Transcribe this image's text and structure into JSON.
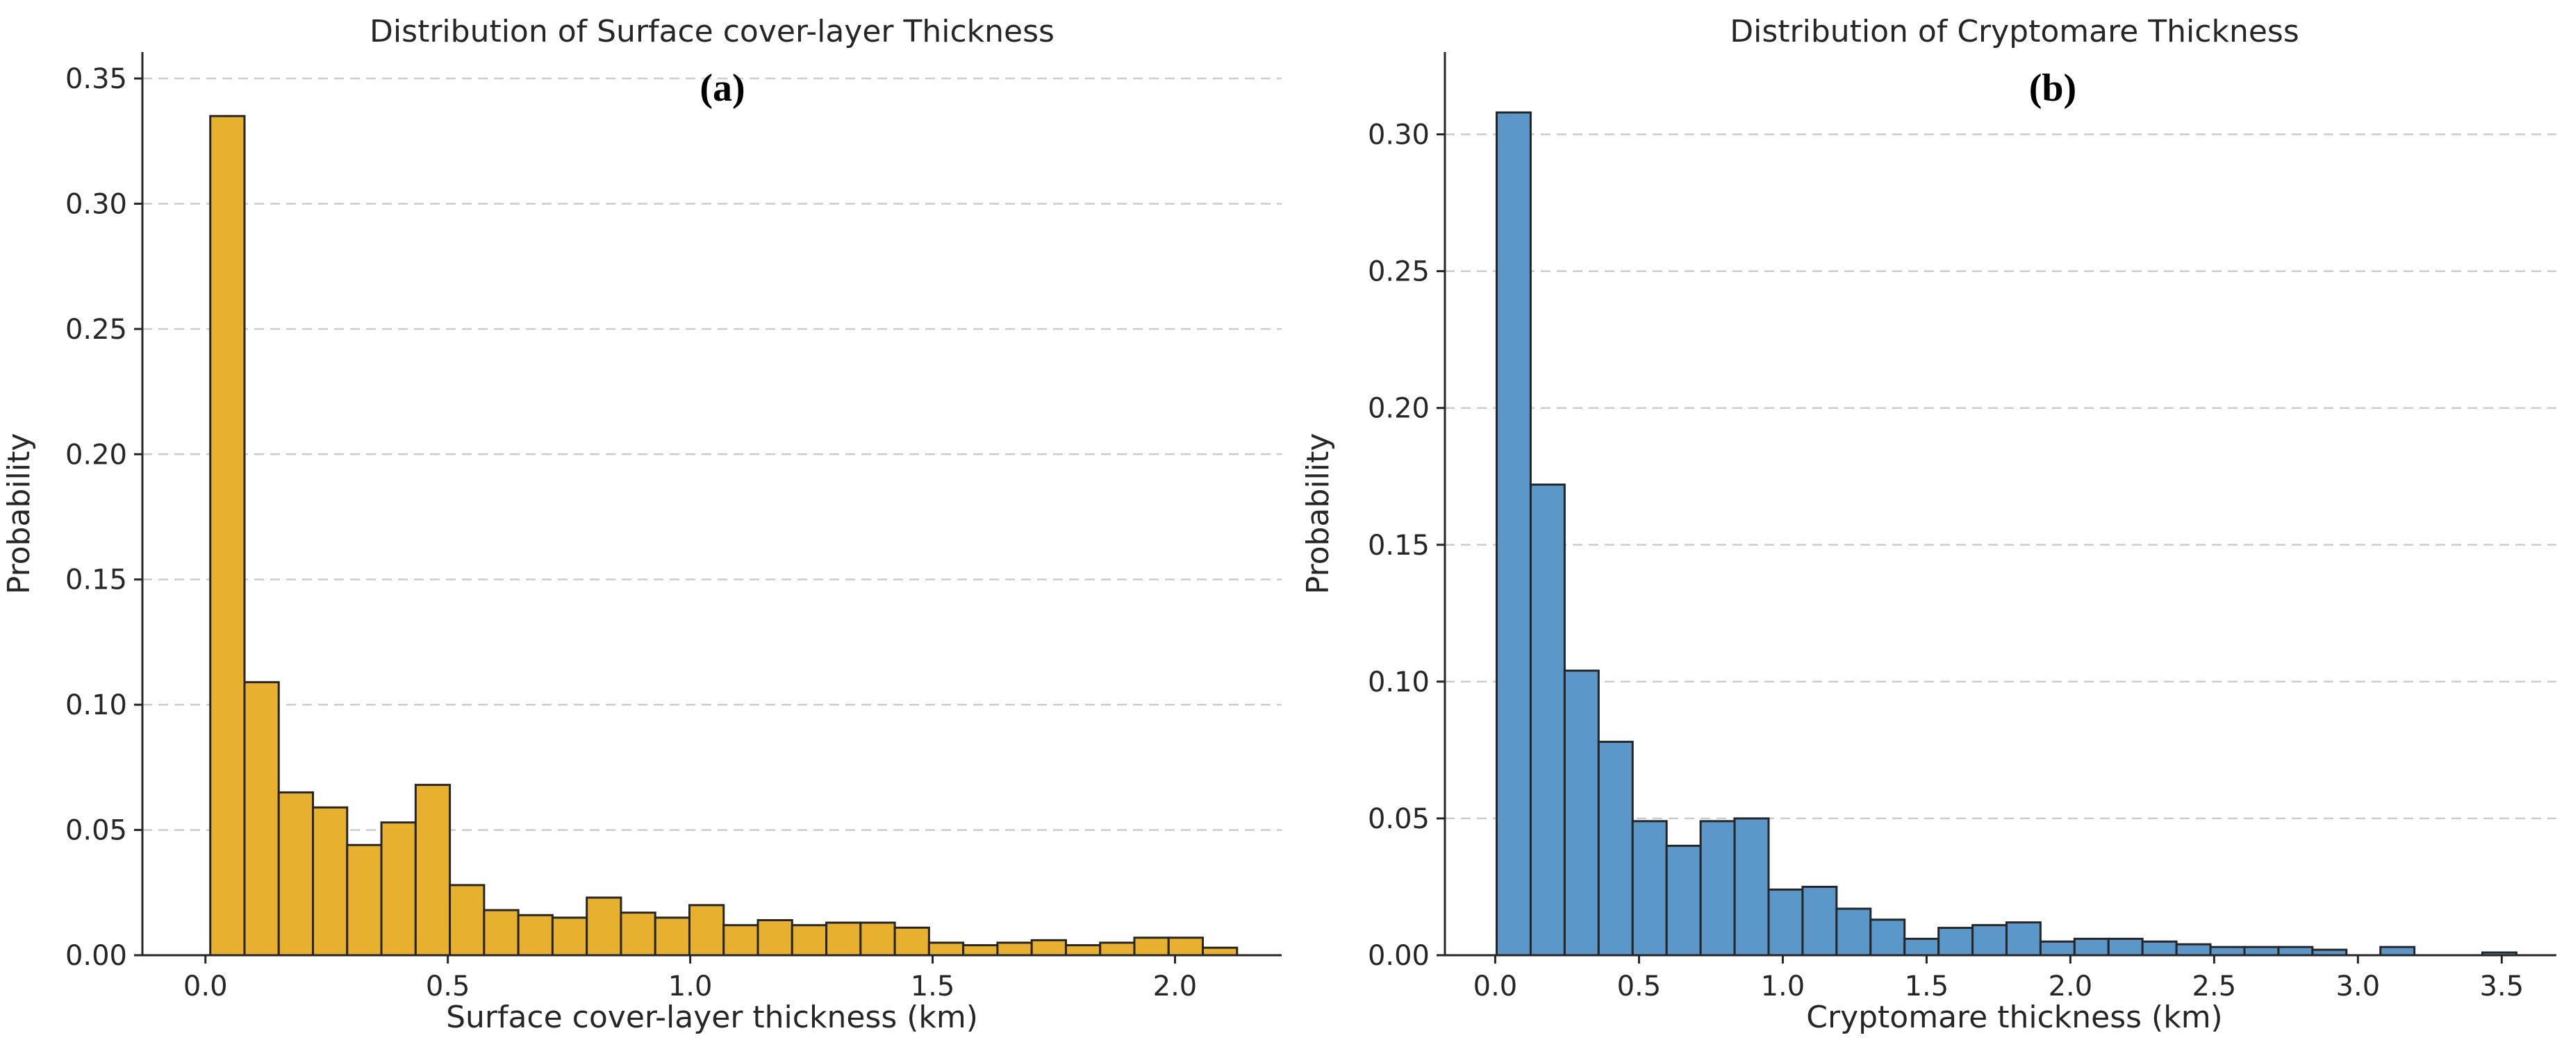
{
  "charts": [
    {
      "chart_data": {
        "type": "bar",
        "title": "Distribution of Surface cover-layer Thickness",
        "panel_label": "(a)",
        "xlabel": "Surface cover-layer thickness (km)",
        "ylabel": "Probability",
        "xlim": [
          -0.13,
          2.22
        ],
        "ylim": [
          0,
          0.355
        ],
        "xticks": [
          0.0,
          0.5,
          1.0,
          1.5,
          2.0
        ],
        "xtick_labels": [
          "0.0",
          "0.5",
          "1.0",
          "1.5",
          "2.0"
        ],
        "yticks": [
          0.0,
          0.05,
          0.1,
          0.15,
          0.2,
          0.25,
          0.3,
          0.35
        ],
        "ytick_labels": [
          "0.00",
          "0.05",
          "0.10",
          "0.15",
          "0.20",
          "0.25",
          "0.30",
          "0.35"
        ],
        "grid": "y",
        "bin_edges": [
          0.01,
          0.0806,
          0.1512,
          0.2218,
          0.2924,
          0.363,
          0.4336,
          0.5042,
          0.5748,
          0.6454,
          0.716,
          0.7866,
          0.8572,
          0.9278,
          0.9984,
          1.069,
          1.1396,
          1.2102,
          1.2808,
          1.3514,
          1.422,
          1.4926,
          1.5632,
          1.6338,
          1.7044,
          1.775,
          1.8456,
          1.9162,
          1.9868,
          2.0574,
          2.128
        ],
        "values": [
          0.335,
          0.109,
          0.065,
          0.059,
          0.044,
          0.053,
          0.068,
          0.028,
          0.018,
          0.016,
          0.015,
          0.023,
          0.017,
          0.015,
          0.02,
          0.012,
          0.014,
          0.012,
          0.013,
          0.013,
          0.011,
          0.005,
          0.004,
          0.005,
          0.006,
          0.004,
          0.005,
          0.007,
          0.007,
          0.003
        ]
      },
      "color": "#E8B02F"
    },
    {
      "chart_data": {
        "type": "bar",
        "title": "Distribution of Cryptomare Thickness",
        "panel_label": "(b)",
        "xlabel": "Cryptomare thickness (km)",
        "ylabel": "Probability",
        "xlim": [
          -0.175,
          3.69
        ],
        "ylim": [
          0,
          0.325
        ],
        "xticks": [
          0.0,
          0.5,
          1.0,
          1.5,
          2.0,
          2.5,
          3.0,
          3.5
        ],
        "xtick_labels": [
          "0.0",
          "0.5",
          "1.0",
          "1.5",
          "2.0",
          "2.5",
          "3.0",
          "3.5"
        ],
        "yticks": [
          0.0,
          0.05,
          0.1,
          0.15,
          0.2,
          0.25,
          0.3
        ],
        "ytick_labels": [
          "0.00",
          "0.05",
          "0.10",
          "0.15",
          "0.20",
          "0.25",
          "0.30"
        ],
        "grid": "y",
        "bin_edges": [
          0.005,
          0.1232,
          0.2414,
          0.3596,
          0.4778,
          0.596,
          0.7142,
          0.8324,
          0.9506,
          1.0688,
          1.187,
          1.3052,
          1.4234,
          1.5416,
          1.6598,
          1.778,
          1.8962,
          2.0144,
          2.1326,
          2.2508,
          2.369,
          2.4872,
          2.6054,
          2.7236,
          2.8418,
          2.96,
          3.0782,
          3.1964,
          3.3146,
          3.4328,
          3.551
        ],
        "values": [
          0.308,
          0.172,
          0.104,
          0.078,
          0.049,
          0.04,
          0.049,
          0.05,
          0.024,
          0.025,
          0.017,
          0.013,
          0.006,
          0.01,
          0.011,
          0.012,
          0.005,
          0.006,
          0.006,
          0.005,
          0.004,
          0.003,
          0.003,
          0.003,
          0.002,
          0.0,
          0.003,
          0.0,
          0.0,
          0.001
        ]
      },
      "color": "#5B97C9"
    }
  ]
}
